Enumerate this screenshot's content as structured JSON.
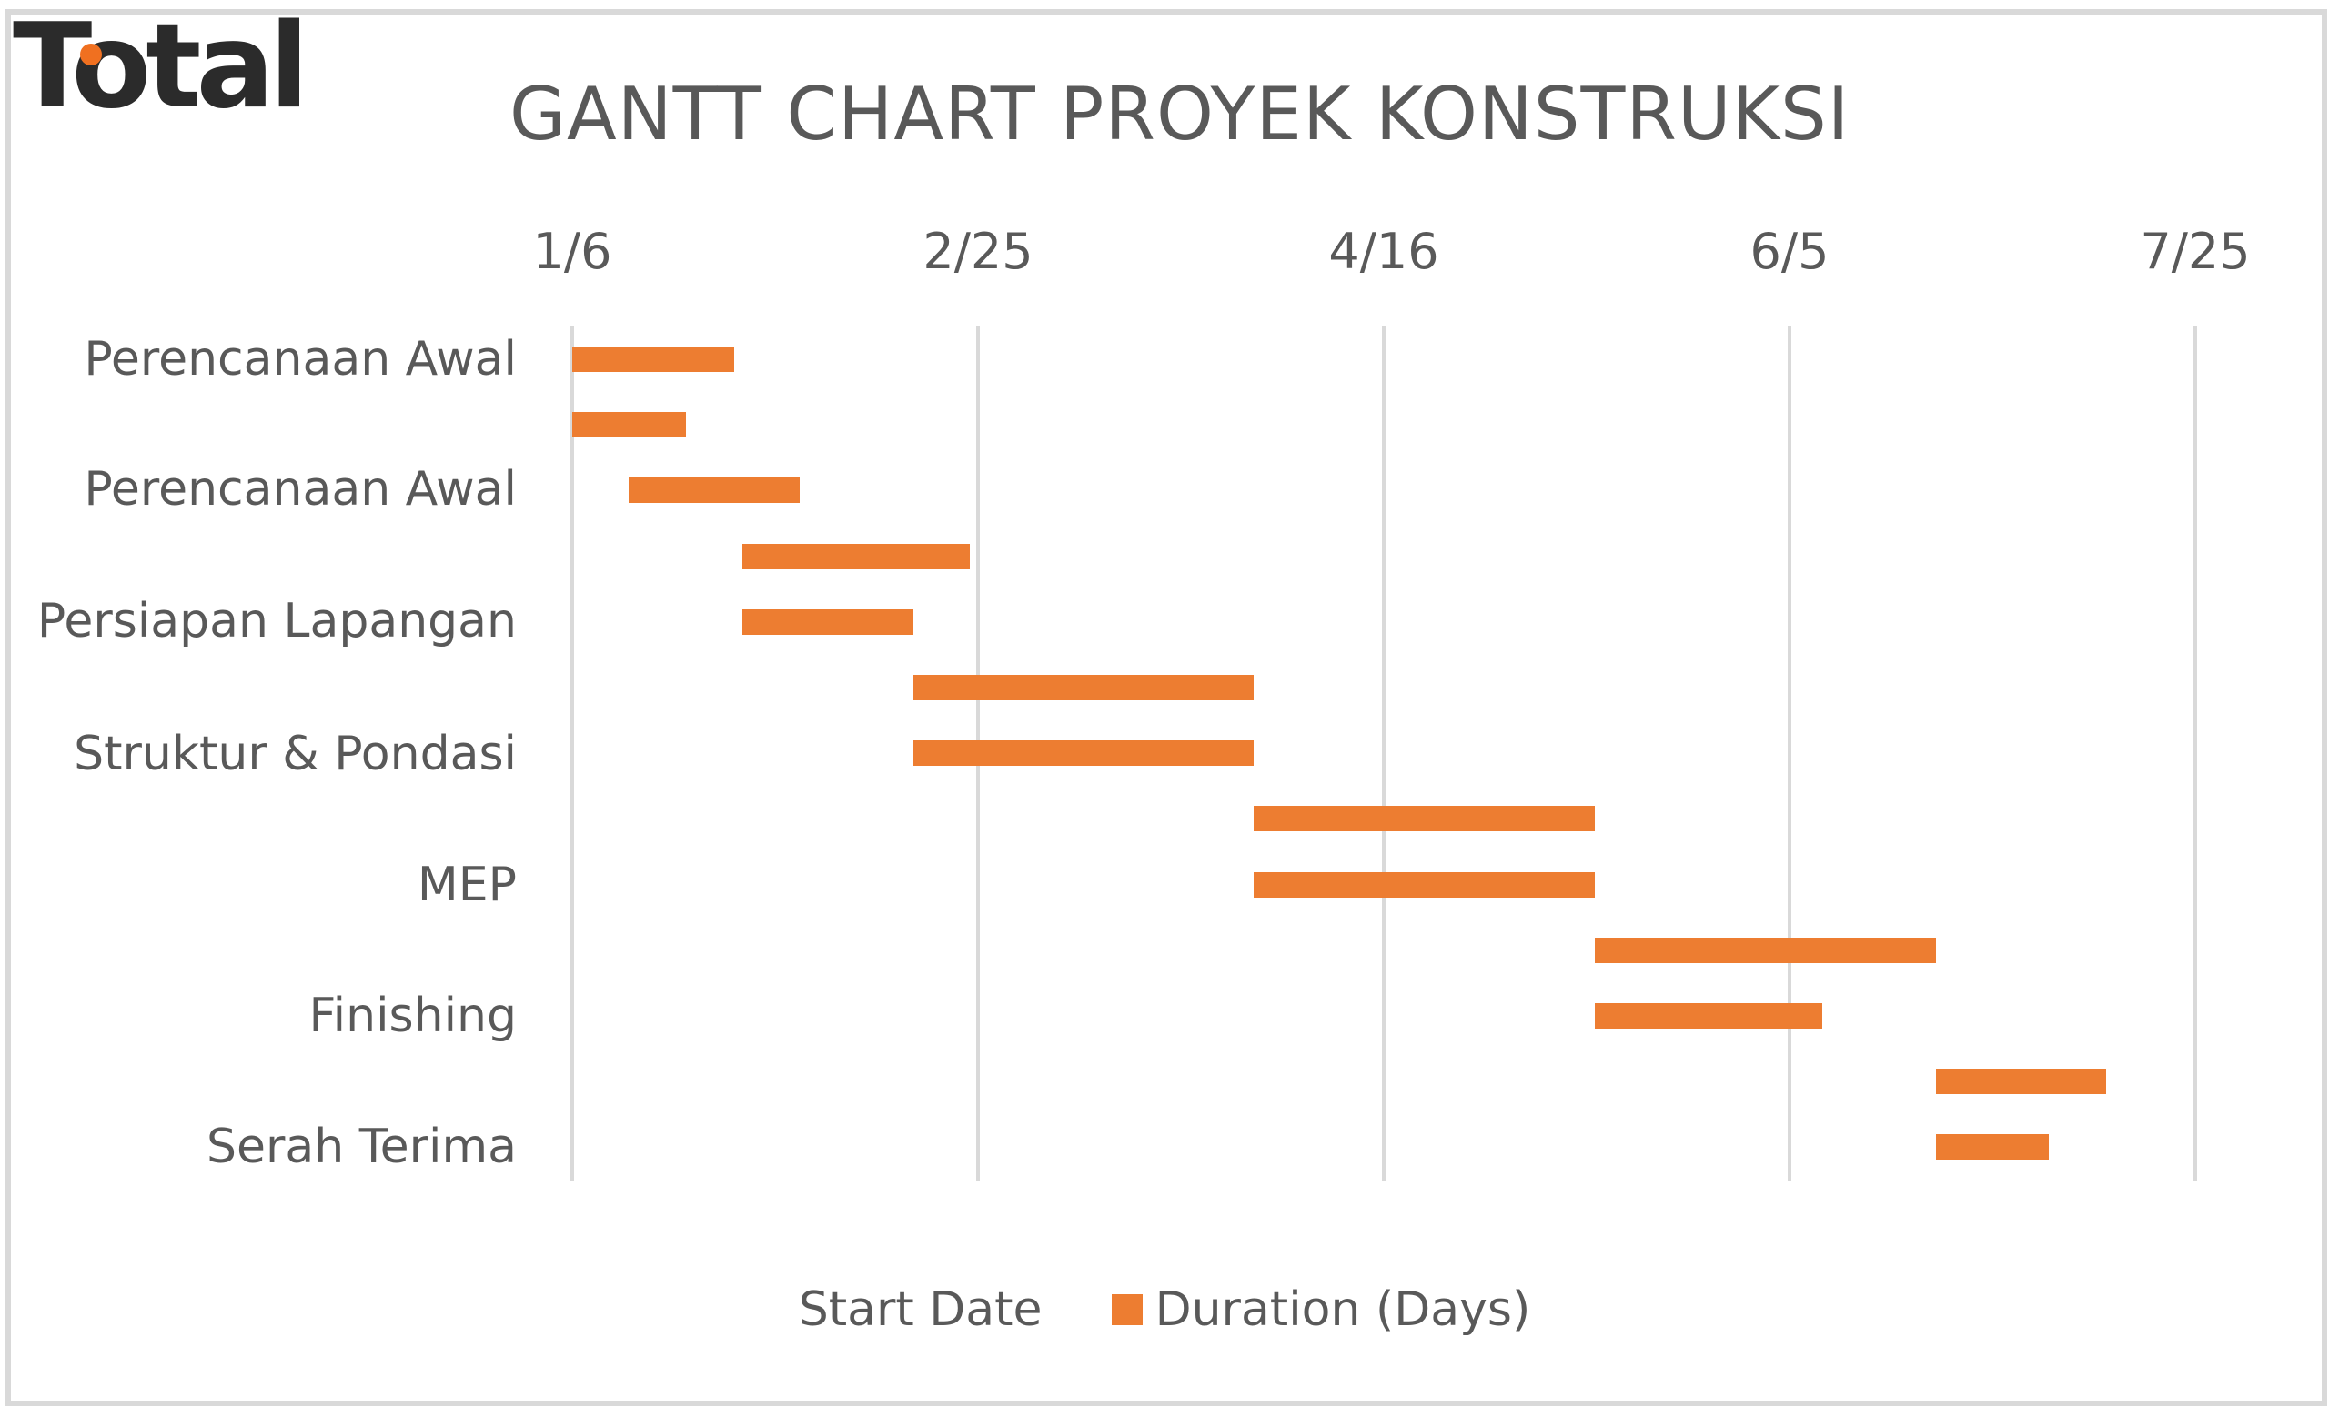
{
  "logo": {
    "text": "Total",
    "accent_color": "#f07020",
    "text_color": "#2b2b2b"
  },
  "chart_data": {
    "type": "bar",
    "subtype": "gantt (stacked horizontal bar, Start Date series invisible)",
    "title": "GANTT CHART PROYEK KONSTRUKSI",
    "xlabel": "",
    "ylabel": "",
    "x_axis": {
      "position": "top",
      "tick_labels": [
        "1/6",
        "2/25",
        "4/16",
        "6/5",
        "7/25"
      ],
      "tick_days_from_start": [
        0,
        50,
        100,
        150,
        200
      ],
      "range": [
        "1/6",
        "7/25"
      ],
      "gridlines": true
    },
    "y_axis_labels": [
      "Perencanaan Awal",
      "Perencanaan Awal",
      "Persiapan Lapangan",
      "Struktur & Pondasi",
      "MEP",
      "Finishing",
      "Serah Terima"
    ],
    "y_label_rows": [
      0,
      2,
      4,
      6,
      8,
      10,
      12
    ],
    "legend": {
      "position": "bottom",
      "entries": [
        {
          "name": "Start Date",
          "color": "none"
        },
        {
          "name": "Duration (Days)",
          "color": "#ed7d31"
        }
      ]
    },
    "series": [
      {
        "name": "Start Date",
        "values": [
          "1/6",
          "1/6",
          "1/13",
          "1/27",
          "1/27",
          "2/17",
          "2/17",
          "3/31",
          "3/31",
          "5/12",
          "5/12",
          "6/23",
          "6/23"
        ]
      },
      {
        "name": "Duration (Days)",
        "values": [
          20,
          14,
          21,
          28,
          21,
          42,
          42,
          42,
          42,
          42,
          28,
          21,
          14
        ]
      }
    ],
    "rows": [
      {
        "start_day": 0,
        "start": "1/6",
        "duration": 20
      },
      {
        "start_day": 0,
        "start": "1/6",
        "duration": 14
      },
      {
        "start_day": 7,
        "start": "1/13",
        "duration": 21
      },
      {
        "start_day": 21,
        "start": "1/27",
        "duration": 28
      },
      {
        "start_day": 21,
        "start": "1/27",
        "duration": 21
      },
      {
        "start_day": 42,
        "start": "2/17",
        "duration": 42
      },
      {
        "start_day": 42,
        "start": "2/17",
        "duration": 42
      },
      {
        "start_day": 84,
        "start": "3/31",
        "duration": 42
      },
      {
        "start_day": 84,
        "start": "3/31",
        "duration": 42
      },
      {
        "start_day": 126,
        "start": "5/12",
        "duration": 42
      },
      {
        "start_day": 126,
        "start": "5/12",
        "duration": 28
      },
      {
        "start_day": 168,
        "start": "6/23",
        "duration": 21
      },
      {
        "start_day": 168,
        "start": "6/23",
        "duration": 14
      }
    ],
    "colors": {
      "bar": "#ed7d31",
      "grid": "#d9d9d9",
      "text": "#595959"
    }
  }
}
